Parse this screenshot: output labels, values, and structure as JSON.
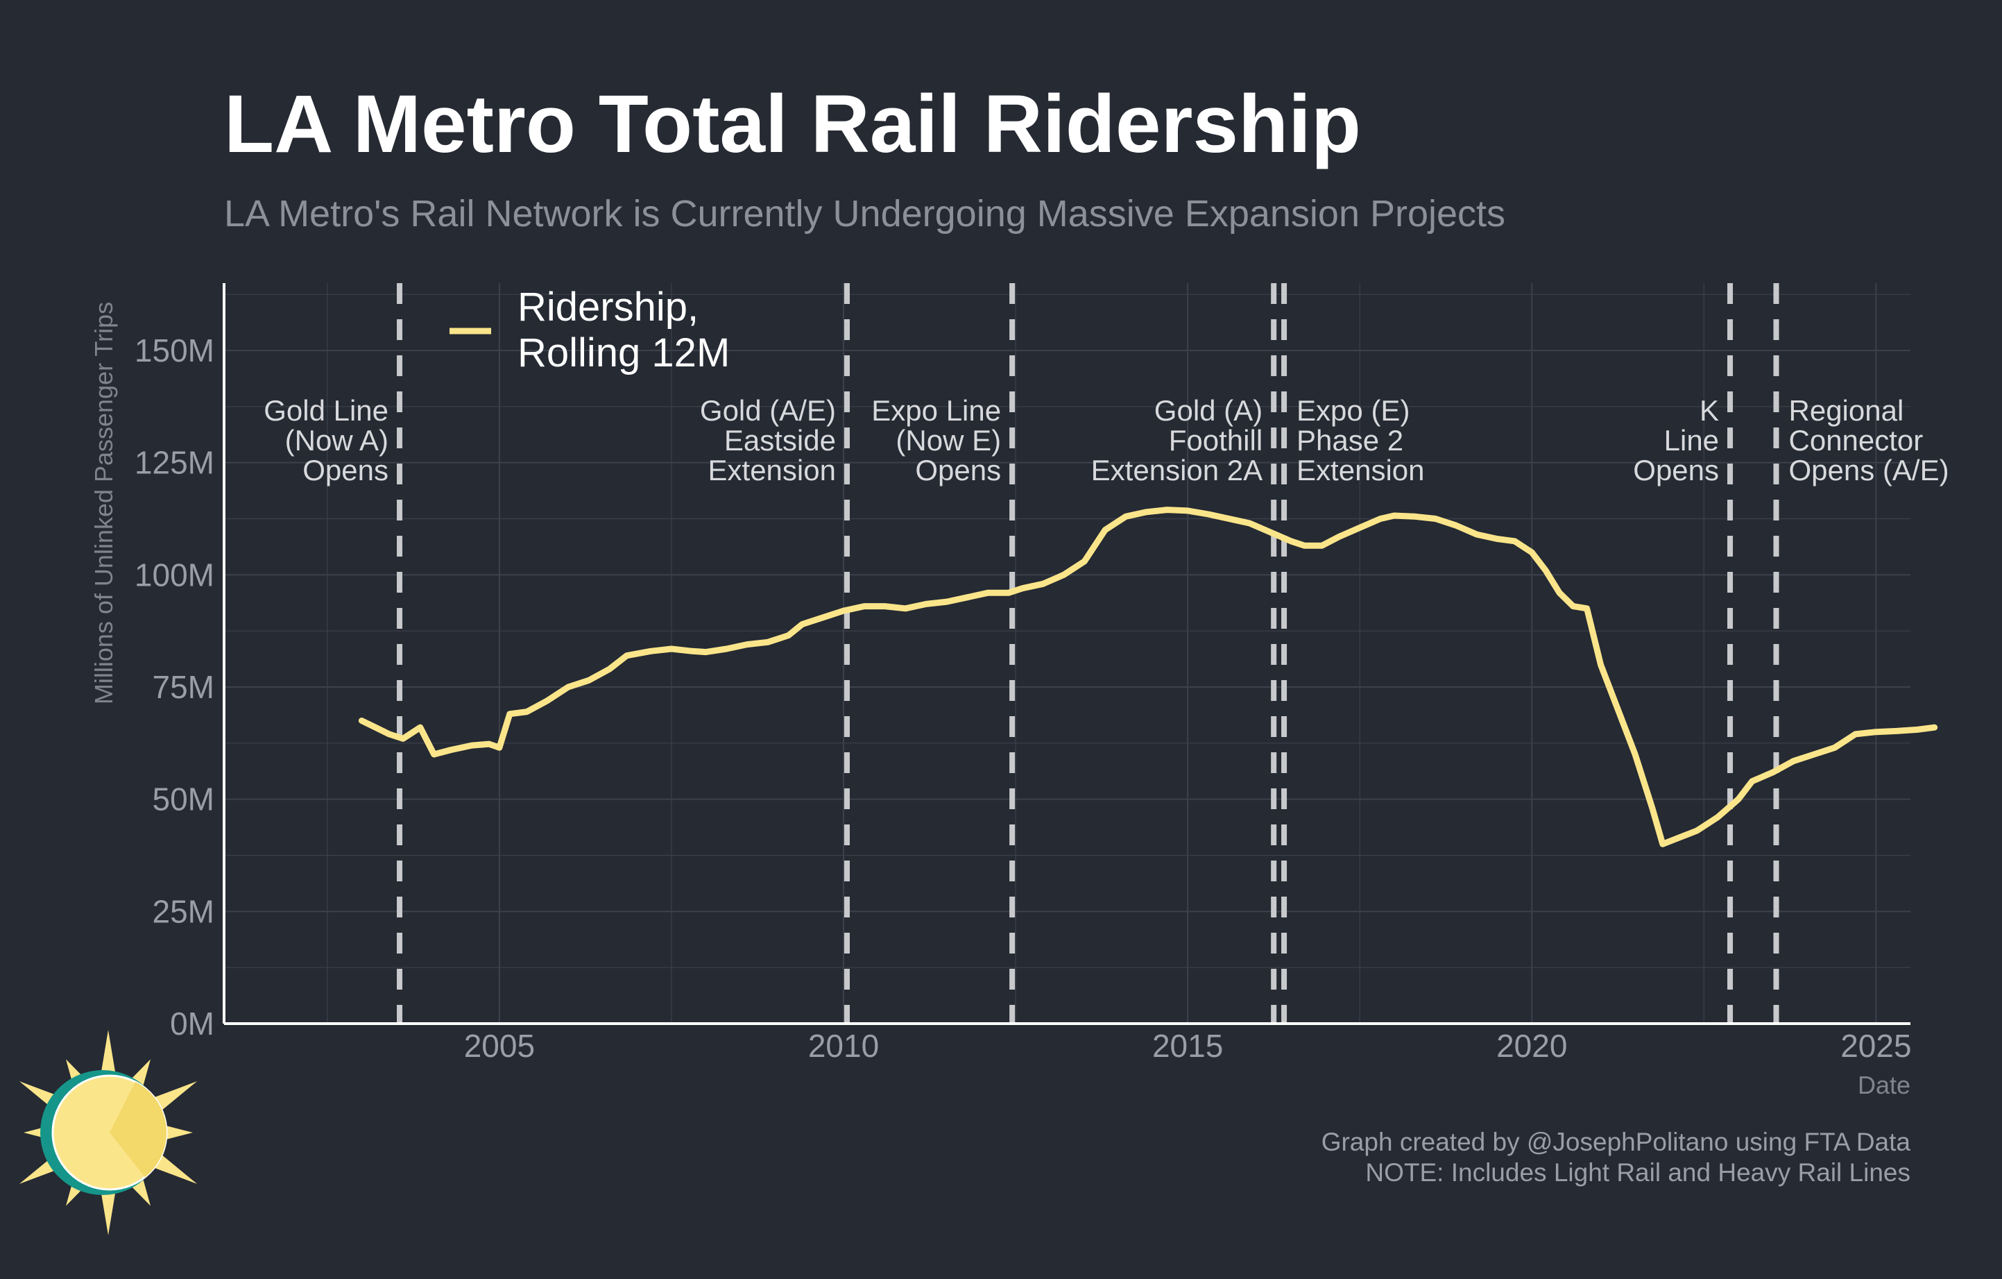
{
  "colors": {
    "background": "#252a33",
    "line": "#fbe58a",
    "grid": "#3c414b",
    "vline": "#c8c9cc",
    "logo_teal": "#16968a",
    "logo_sun": "#fbe58a",
    "logo_sun_dark": "#f3d86a"
  },
  "icons": [
    "sun-logo-icon"
  ],
  "chart_data": {
    "type": "line",
    "title": "LA Metro Total Rail Ridership",
    "subtitle": "LA Metro's Rail Network is Currently Undergoing Massive Expansion Projects",
    "xlabel": "Date",
    "ylabel": "Millions of Unlinked Passenger Trips",
    "xlim": [
      2001.0,
      2025.5
    ],
    "ylim": [
      0,
      165
    ],
    "grid": true,
    "legend_placement": "top-left",
    "x_ticks": [
      {
        "value": 2005,
        "label": "2005"
      },
      {
        "value": 2010,
        "label": "2010"
      },
      {
        "value": 2015,
        "label": "2015"
      },
      {
        "value": 2020,
        "label": "2020"
      },
      {
        "value": 2025,
        "label": "2025"
      }
    ],
    "y_ticks": [
      {
        "value": 0,
        "label": "0M"
      },
      {
        "value": 25,
        "label": "25M"
      },
      {
        "value": 50,
        "label": "50M"
      },
      {
        "value": 75,
        "label": "75M"
      },
      {
        "value": 100,
        "label": "100M"
      },
      {
        "value": 125,
        "label": "125M"
      },
      {
        "value": 150,
        "label": "150M"
      }
    ],
    "series": [
      {
        "name": "Ridership, Rolling 12M",
        "legend_lines": [
          "Ridership,",
          "Rolling 12M"
        ],
        "points": [
          [
            2003.0,
            67.5
          ],
          [
            2003.2,
            66.0
          ],
          [
            2003.4,
            64.5
          ],
          [
            2003.6,
            63.5
          ],
          [
            2003.85,
            66.0
          ],
          [
            2004.05,
            60.0
          ],
          [
            2004.3,
            61.0
          ],
          [
            2004.6,
            62.0
          ],
          [
            2004.85,
            62.3
          ],
          [
            2005.0,
            61.5
          ],
          [
            2005.15,
            69.0
          ],
          [
            2005.4,
            69.5
          ],
          [
            2005.7,
            72.0
          ],
          [
            2006.0,
            75.0
          ],
          [
            2006.3,
            76.5
          ],
          [
            2006.6,
            79.0
          ],
          [
            2006.85,
            82.0
          ],
          [
            2007.2,
            83.0
          ],
          [
            2007.5,
            83.5
          ],
          [
            2007.8,
            83.0
          ],
          [
            2008.0,
            82.8
          ],
          [
            2008.3,
            83.5
          ],
          [
            2008.6,
            84.5
          ],
          [
            2008.9,
            85.0
          ],
          [
            2009.2,
            86.5
          ],
          [
            2009.4,
            89.0
          ],
          [
            2009.7,
            90.5
          ],
          [
            2010.0,
            92.0
          ],
          [
            2010.3,
            93.0
          ],
          [
            2010.6,
            93.0
          ],
          [
            2010.9,
            92.5
          ],
          [
            2011.2,
            93.5
          ],
          [
            2011.5,
            94.0
          ],
          [
            2011.8,
            95.0
          ],
          [
            2012.1,
            96.0
          ],
          [
            2012.4,
            96.0
          ],
          [
            2012.6,
            97.0
          ],
          [
            2012.9,
            98.0
          ],
          [
            2013.2,
            100.0
          ],
          [
            2013.5,
            103.0
          ],
          [
            2013.8,
            110.0
          ],
          [
            2014.1,
            113.0
          ],
          [
            2014.4,
            114.0
          ],
          [
            2014.7,
            114.5
          ],
          [
            2015.0,
            114.3
          ],
          [
            2015.3,
            113.5
          ],
          [
            2015.6,
            112.5
          ],
          [
            2015.9,
            111.5
          ],
          [
            2016.2,
            109.5
          ],
          [
            2016.5,
            107.5
          ],
          [
            2016.7,
            106.5
          ],
          [
            2016.95,
            106.5
          ],
          [
            2017.2,
            108.5
          ],
          [
            2017.5,
            110.5
          ],
          [
            2017.8,
            112.5
          ],
          [
            2018.0,
            113.2
          ],
          [
            2018.3,
            113.0
          ],
          [
            2018.6,
            112.5
          ],
          [
            2018.9,
            111.0
          ],
          [
            2019.2,
            109.0
          ],
          [
            2019.5,
            108.0
          ],
          [
            2019.75,
            107.5
          ],
          [
            2020.0,
            105.0
          ],
          [
            2020.2,
            101.0
          ],
          [
            2020.4,
            96.0
          ],
          [
            2020.6,
            93.0
          ],
          [
            2020.8,
            92.5
          ],
          [
            2021.0,
            80.0
          ],
          [
            2021.25,
            70.0
          ],
          [
            2021.5,
            60.0
          ],
          [
            2021.75,
            48.0
          ],
          [
            2021.9,
            40.0
          ],
          [
            2022.15,
            41.5
          ],
          [
            2022.4,
            43.0
          ],
          [
            2022.7,
            46.0
          ],
          [
            2023.0,
            50.0
          ],
          [
            2023.2,
            54.0
          ],
          [
            2023.5,
            56.0
          ],
          [
            2023.8,
            58.5
          ],
          [
            2024.1,
            60.0
          ],
          [
            2024.4,
            61.5
          ],
          [
            2024.7,
            64.5
          ],
          [
            2025.0,
            65.0
          ],
          [
            2025.3,
            65.2
          ],
          [
            2025.6,
            65.5
          ],
          [
            2025.85,
            66.0
          ]
        ]
      }
    ],
    "events": [
      {
        "x": 2003.55,
        "lines": [
          "Gold Line",
          "(Now A)",
          "Opens"
        ],
        "side": "left"
      },
      {
        "x": 2010.05,
        "lines": [
          "Gold (A/E)",
          "Eastside",
          "Extension"
        ],
        "side": "left"
      },
      {
        "x": 2012.45,
        "lines": [
          "Expo Line",
          "(Now E)",
          "Opens"
        ],
        "side": "left"
      },
      {
        "x": 2016.25,
        "lines": [
          "Gold (A)",
          "Foothill",
          "Extension 2A"
        ],
        "side": "left"
      },
      {
        "x": 2016.4,
        "lines": [
          "Expo (E)",
          "Phase 2",
          "Extension"
        ],
        "side": "right"
      },
      {
        "x": 2022.88,
        "lines": [
          "K",
          "Line",
          "Opens"
        ],
        "side": "left"
      },
      {
        "x": 2023.55,
        "lines": [
          "Regional",
          "Connector",
          "Opens (A/E)"
        ],
        "side": "right"
      }
    ],
    "captions": [
      "Graph created by @JosephPolitano using FTA Data",
      "NOTE: Includes Light Rail and Heavy Rail Lines"
    ]
  }
}
